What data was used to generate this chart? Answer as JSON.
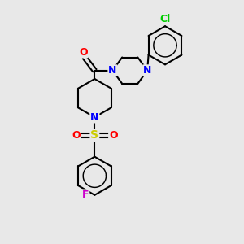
{
  "bg_color": "#e8e8e8",
  "atom_colors": {
    "C": "#000000",
    "N": "#0000ff",
    "O": "#ff0000",
    "S": "#cccc00",
    "Cl": "#00cc00",
    "F": "#cc00cc"
  },
  "bond_color": "#000000",
  "bond_width": 1.5,
  "font_size": 9,
  "figsize": [
    3.0,
    3.0
  ],
  "dpi": 100
}
